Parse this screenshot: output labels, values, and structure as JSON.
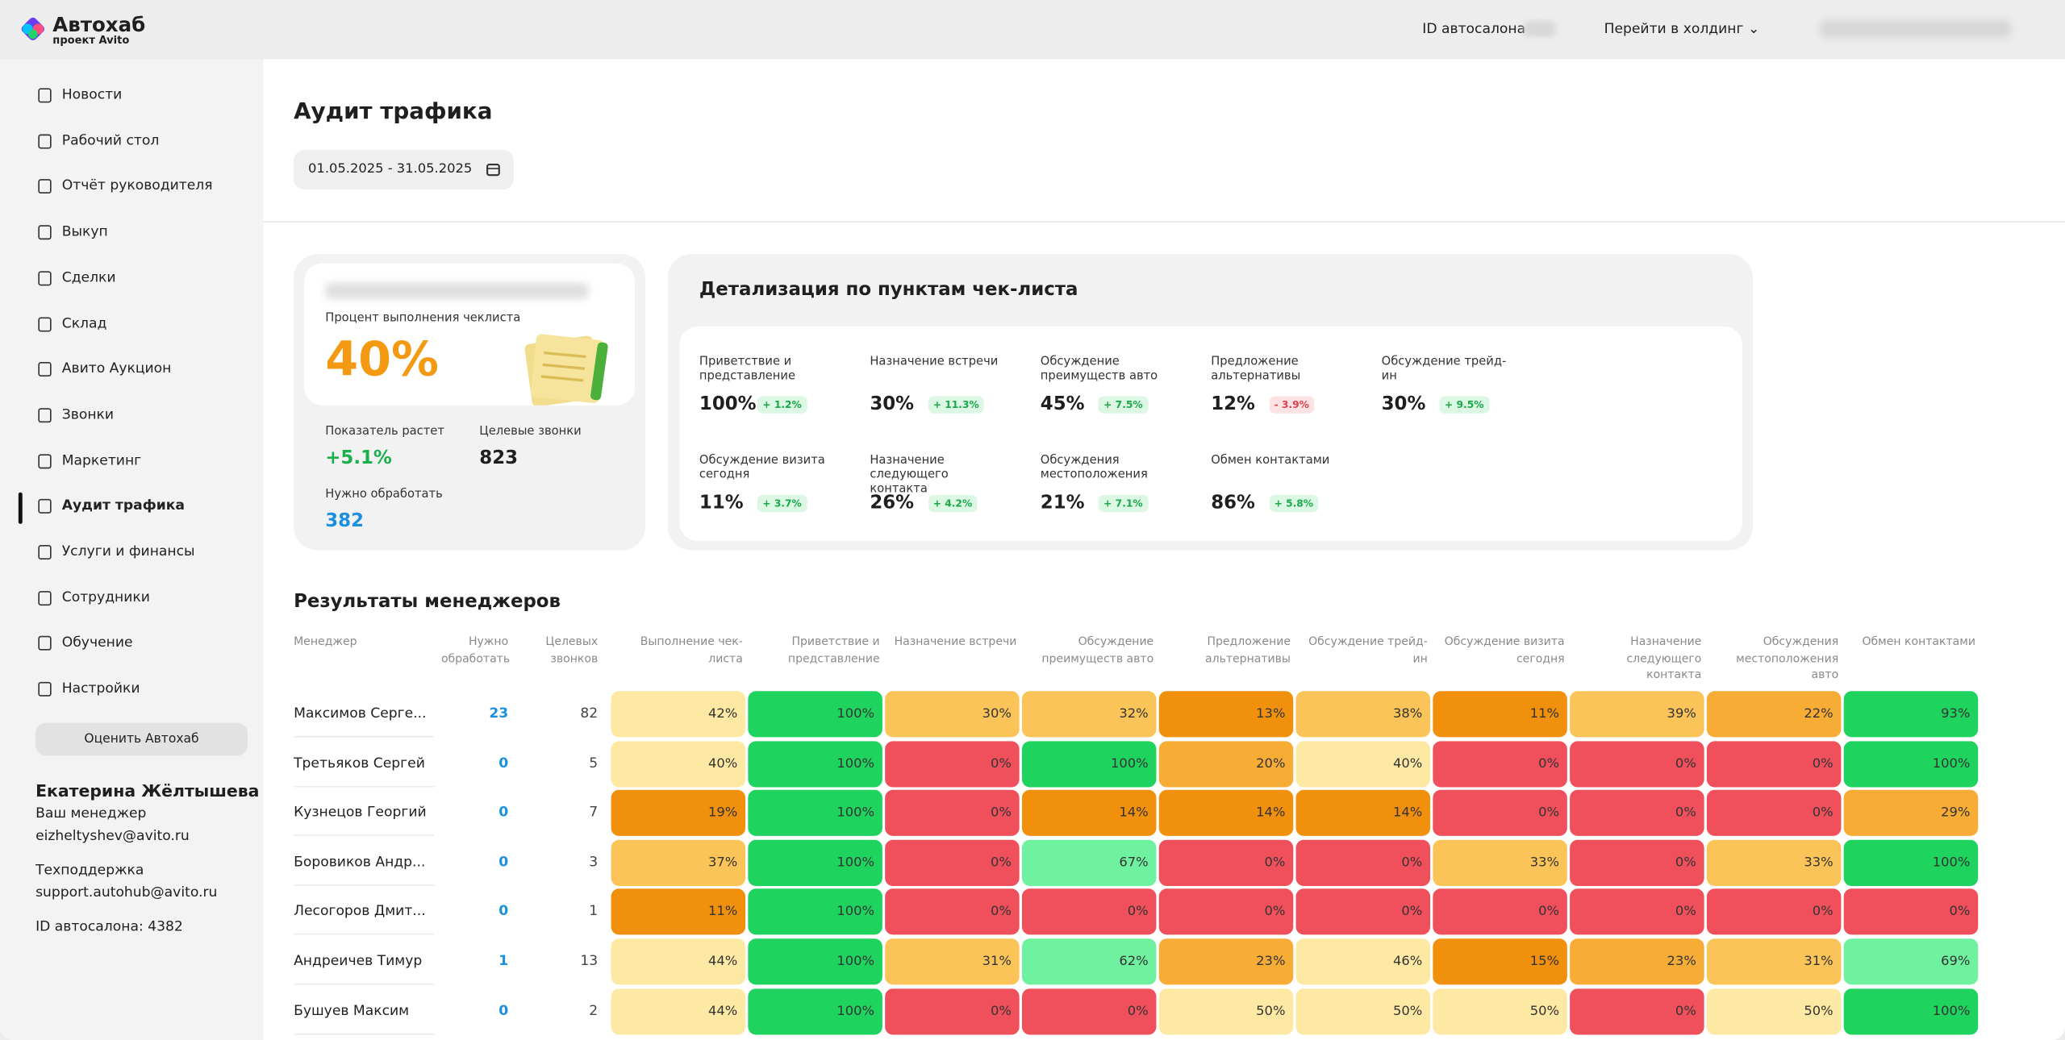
{
  "header": {
    "logo_title": "Автохаб",
    "logo_subtitle": "проект Avito",
    "salon_id_label": "ID автосалона",
    "holding_link": "Перейти в холдинг"
  },
  "sidebar": {
    "nav": [
      {
        "label": "Новости",
        "active": false
      },
      {
        "label": "Рабочий стол",
        "active": false
      },
      {
        "label": "Отчёт руководителя",
        "active": false
      },
      {
        "label": "Выкуп",
        "active": false
      },
      {
        "label": "Сделки",
        "active": false
      },
      {
        "label": "Склад",
        "active": false
      },
      {
        "label": "Авито Аукцион",
        "active": false
      },
      {
        "label": "Звонки",
        "active": false
      },
      {
        "label": "Маркетинг",
        "active": false
      },
      {
        "label": "Аудит трафика",
        "active": true
      },
      {
        "label": "Услуги и финансы",
        "active": false
      },
      {
        "label": "Сотрудники",
        "active": false
      },
      {
        "label": "Обучение",
        "active": false
      },
      {
        "label": "Настройки",
        "active": false
      }
    ],
    "rate_button": "Оценить Автохаб",
    "user": {
      "name": "Екатерина Жёлтышева",
      "role": "Ваш менеджер",
      "email": "eizheltyshev@avito.ru",
      "support_label": "Техподдержка",
      "support_email": "support.autohub@avito.ru",
      "salon_id": "ID автосалона: 4382"
    }
  },
  "page": {
    "title": "Аудит трафика",
    "date_range": "01.05.2025 - 31.05.2025"
  },
  "summary": {
    "caption": "Процент выполнения чеклиста",
    "value": "40%",
    "growth_label": "Показатель растет",
    "growth_value": "+5.1%",
    "calls_label": "Целевые звонки",
    "calls_value": "823",
    "todo_label": "Нужно обработать",
    "todo_value": "382"
  },
  "checklist": {
    "title": "Детализация по пунктам чек-листа",
    "items": [
      {
        "label": "Приветствие и представление",
        "value": "100%",
        "delta": "+ 1.2%"
      },
      {
        "label": "Назначение встречи",
        "value": "30%",
        "delta": "+ 11.3%"
      },
      {
        "label": "Обсуждение преимуществ авто",
        "value": "45%",
        "delta": "+ 7.5%"
      },
      {
        "label": "Предложение альтернативы",
        "value": "12%",
        "delta": "- 3.9%"
      },
      {
        "label": "Обсуждение трейд-ин",
        "value": "30%",
        "delta": "+ 9.5%"
      },
      {
        "label": "Обсуждение визита сегодня",
        "value": "11%",
        "delta": "+ 3.7%"
      },
      {
        "label": "Назначение следующего контакта",
        "value": "26%",
        "delta": "+ 4.2%"
      },
      {
        "label": "Обсуждения местоположения",
        "value": "21%",
        "delta": "+ 7.1%"
      },
      {
        "label": "Обмен контактами",
        "value": "86%",
        "delta": "+ 5.8%"
      }
    ]
  },
  "managers": {
    "title": "Результаты менеджеров",
    "columns": [
      "Менеджер",
      "Нужно обработать",
      "Целевых звонков",
      "Выполнение чек-листа",
      "Приветствие и представление",
      "Назначение встречи",
      "Обсуждение преимуществ авто",
      "Предложение альтернативы",
      "Обсуждение трейд-ин",
      "Обсуждение визита сегодня",
      "Назначение следующего контакта",
      "Обсуждения местоположения авто",
      "Обмен контактами"
    ],
    "rows": [
      [
        "Максимов Серге...",
        "23",
        "82",
        "42%",
        "100%",
        "30%",
        "32%",
        "13%",
        "38%",
        "11%",
        "39%",
        "22%",
        "93%"
      ],
      [
        "Третьяков Сергей",
        "0",
        "5",
        "40%",
        "100%",
        "0%",
        "100%",
        "20%",
        "40%",
        "0%",
        "0%",
        "0%",
        "100%"
      ],
      [
        "Кузнецов Георгий",
        "0",
        "7",
        "19%",
        "100%",
        "0%",
        "14%",
        "14%",
        "14%",
        "0%",
        "0%",
        "0%",
        "29%"
      ],
      [
        "Боровиков Андр...",
        "0",
        "3",
        "37%",
        "100%",
        "0%",
        "67%",
        "0%",
        "0%",
        "33%",
        "0%",
        "33%",
        "100%"
      ],
      [
        "Лесогоров Дмит...",
        "0",
        "1",
        "11%",
        "100%",
        "0%",
        "0%",
        "0%",
        "0%",
        "0%",
        "0%",
        "0%",
        "0%"
      ],
      [
        "Андреичев Тимур",
        "1",
        "13",
        "44%",
        "100%",
        "31%",
        "62%",
        "23%",
        "46%",
        "15%",
        "23%",
        "31%",
        "69%"
      ],
      [
        "Бушуев Максим",
        "0",
        "2",
        "44%",
        "100%",
        "0%",
        "0%",
        "50%",
        "50%",
        "50%",
        "0%",
        "50%",
        "100%"
      ]
    ]
  }
}
